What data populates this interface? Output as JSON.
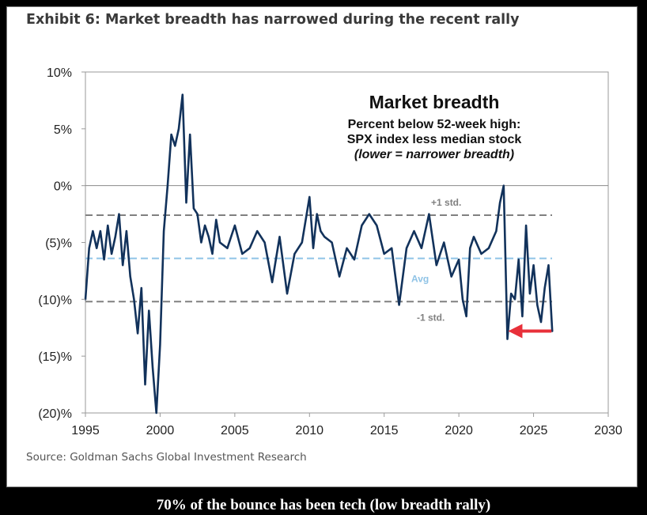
{
  "exhibit_title": "Exhibit 6: Market breadth has narrowed during the recent rally",
  "source": "Source: Goldman Sachs Global Investment Research",
  "caption": "70% of the bounce has been tech (low breadth rally)",
  "colors": {
    "series": "#12325b",
    "avg_line": "#8fc3e6",
    "std_line": "#808080",
    "arrow": "#e8303a",
    "axis_text": "#222222"
  },
  "chart_data": {
    "type": "line",
    "title": "Market breadth",
    "subtitle_lines": [
      "Percent below 52-week high:",
      "SPX index less median stock",
      "(lower = narrower breadth)"
    ],
    "xlabel": "",
    "ylabel": "",
    "xlim": [
      1995,
      2030
    ],
    "ylim": [
      -20,
      10
    ],
    "x_ticks": [
      1995,
      2000,
      2005,
      2010,
      2015,
      2020,
      2025,
      2030
    ],
    "x_tick_labels": [
      "1995",
      "2000",
      "2005",
      "2010",
      "2015",
      "2020",
      "2025",
      "2030"
    ],
    "y_ticks": [
      10,
      5,
      0,
      -5,
      -10,
      -15,
      -20
    ],
    "y_tick_labels": [
      "10%",
      "5%",
      "0%",
      "(5)%",
      "(10)%",
      "(15)%",
      "(20)%"
    ],
    "reference_lines": [
      {
        "name": "+1 std.",
        "label": "+1 std.",
        "y": -2.6,
        "style": "dashed"
      },
      {
        "name": "Avg",
        "label": "Avg",
        "y": -6.4,
        "style": "dashed"
      },
      {
        "name": "-1 std.",
        "label": "-1 std.",
        "y": -10.2,
        "style": "dashed"
      }
    ],
    "series": [
      {
        "name": "Market breadth",
        "x": [
          1995.0,
          1995.25,
          1995.5,
          1995.75,
          1996.0,
          1996.25,
          1996.5,
          1996.75,
          1997.0,
          1997.25,
          1997.5,
          1997.75,
          1998.0,
          1998.25,
          1998.5,
          1998.75,
          1999.0,
          1999.25,
          1999.5,
          1999.75,
          2000.0,
          2000.25,
          2000.5,
          2000.75,
          2001.0,
          2001.25,
          2001.5,
          2001.75,
          2002.0,
          2002.25,
          2002.5,
          2002.75,
          2003.0,
          2003.25,
          2003.5,
          2003.75,
          2004.0,
          2004.5,
          2005.0,
          2005.5,
          2006.0,
          2006.5,
          2007.0,
          2007.5,
          2008.0,
          2008.5,
          2009.0,
          2009.5,
          2010.0,
          2010.25,
          2010.5,
          2010.75,
          2011.0,
          2011.5,
          2012.0,
          2012.5,
          2013.0,
          2013.5,
          2014.0,
          2014.5,
          2015.0,
          2015.5,
          2016.0,
          2016.5,
          2017.0,
          2017.5,
          2018.0,
          2018.5,
          2019.0,
          2019.5,
          2020.0,
          2020.25,
          2020.5,
          2020.75,
          2021.0,
          2021.5,
          2022.0,
          2022.5,
          2022.75,
          2023.0,
          2023.25,
          2023.5,
          2023.75,
          2024.0,
          2024.25,
          2024.5,
          2024.75,
          2025.0,
          2025.25,
          2025.5,
          2025.75,
          2026.0,
          2026.25
        ],
        "values": [
          -10.0,
          -5.5,
          -4.0,
          -5.5,
          -4.0,
          -6.5,
          -3.5,
          -6.0,
          -4.5,
          -2.5,
          -7.0,
          -4.0,
          -8.0,
          -10.0,
          -13.0,
          -9.0,
          -17.5,
          -11.0,
          -16.0,
          -20.0,
          -14.0,
          -4.0,
          0.0,
          4.5,
          3.5,
          5.0,
          8.0,
          -1.5,
          4.5,
          -2.0,
          -2.5,
          -5.0,
          -3.5,
          -4.5,
          -6.0,
          -3.0,
          -5.0,
          -5.5,
          -3.5,
          -6.0,
          -5.5,
          -4.0,
          -5.0,
          -8.5,
          -4.5,
          -9.5,
          -6.0,
          -5.0,
          -1.0,
          -5.5,
          -2.5,
          -4.0,
          -4.5,
          -5.0,
          -8.0,
          -5.5,
          -6.5,
          -3.5,
          -2.5,
          -3.5,
          -6.0,
          -5.5,
          -10.5,
          -5.5,
          -4.0,
          -5.5,
          -2.5,
          -7.0,
          -5.0,
          -8.0,
          -6.5,
          -10.0,
          -11.5,
          -5.5,
          -4.5,
          -6.0,
          -5.5,
          -4.0,
          -1.5,
          0.0,
          -13.5,
          -9.5,
          -10.0,
          -6.5,
          -11.5,
          -3.5,
          -9.5,
          -7.0,
          -10.5,
          -12.0,
          -9.0,
          -7.0,
          -12.8
        ]
      }
    ],
    "annotations": [
      {
        "name": "red-arrow",
        "text": "",
        "points_to": {
          "x": 2023.5,
          "y": -12.8
        }
      }
    ]
  }
}
